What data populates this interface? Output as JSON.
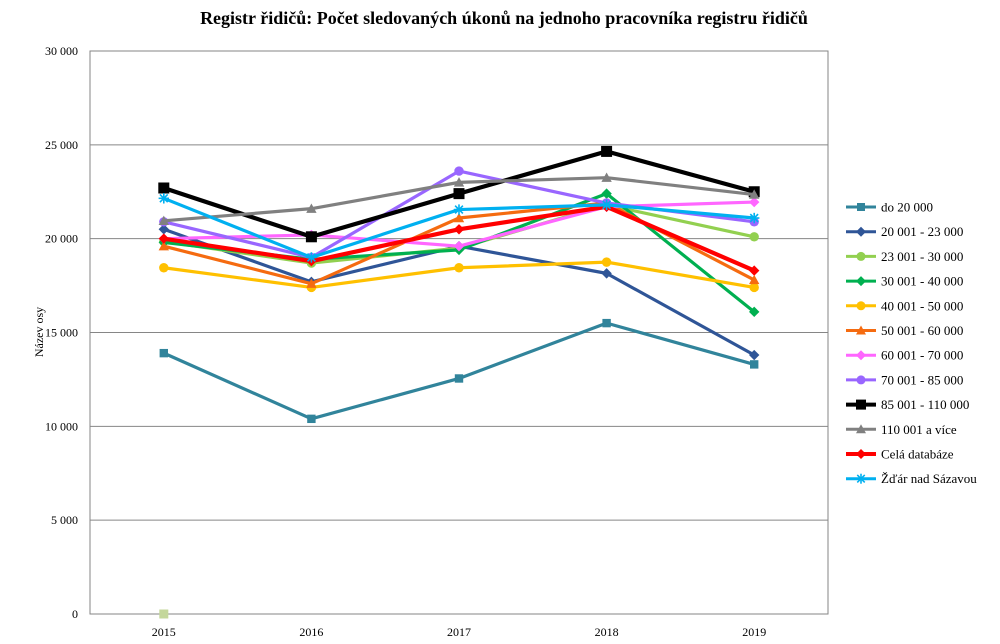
{
  "chart_data": {
    "type": "line",
    "title": "Registr řidičů: Počet sledovaných úkonů na jednoho pracovníka registru řidičů",
    "xlabel": "",
    "ylabel": "Název osy",
    "categories": [
      "2015",
      "2016",
      "2017",
      "2018",
      "2019"
    ],
    "ylim": [
      0,
      30000
    ],
    "yticks": [
      0,
      5000,
      10000,
      15000,
      20000,
      25000,
      30000
    ],
    "ytick_labels": [
      "0",
      "5 000",
      "10 000",
      "15 000",
      "20 000",
      "25 000",
      "30 000"
    ],
    "grid": true,
    "legend_position": "right",
    "series": [
      {
        "name": "do 20 000",
        "color": "#31849B",
        "marker": "square",
        "values": [
          13900,
          10400,
          12550,
          15500,
          13300
        ]
      },
      {
        "name": "20 001 - 23 000",
        "color": "#2F5597",
        "marker": "diamond",
        "values": [
          20500,
          17700,
          19600,
          18150,
          13800
        ]
      },
      {
        "name": "23 001 - 30 000",
        "color": "#92D050",
        "marker": "circle",
        "values": [
          19850,
          18700,
          19500,
          21800,
          20100
        ]
      },
      {
        "name": "30 001 - 40 000",
        "color": "#00B050",
        "marker": "diamond",
        "values": [
          19800,
          18900,
          19400,
          22400,
          16100
        ]
      },
      {
        "name": "40 001 - 50 000",
        "color": "#FFC000",
        "marker": "circle",
        "values": [
          18450,
          17400,
          18450,
          18750,
          17400
        ]
      },
      {
        "name": "50 001 - 60 000",
        "color": "#F56B10",
        "marker": "triangle",
        "values": [
          19600,
          17600,
          21100,
          21900,
          17800
        ]
      },
      {
        "name": "60 001 - 70 000",
        "color": "#FF66FF",
        "marker": "diamond",
        "values": [
          20000,
          20200,
          19600,
          21700,
          21950
        ]
      },
      {
        "name": "70 001 - 85 000",
        "color": "#9966FF",
        "marker": "circle",
        "values": [
          20900,
          19000,
          23600,
          21900,
          20900
        ]
      },
      {
        "name": "85 001 - 110 000",
        "color": "#000000",
        "marker": "square",
        "values": [
          22700,
          20100,
          22400,
          24650,
          22500
        ]
      },
      {
        "name": "110 001 a více",
        "color": "#808080",
        "marker": "triangle",
        "values": [
          20950,
          21600,
          23000,
          23250,
          22350
        ]
      },
      {
        "name": "Celá databáze",
        "color": "#FF0000",
        "marker": "diamond",
        "values": [
          20000,
          18800,
          20500,
          21700,
          18300
        ]
      },
      {
        "name": "Žďár nad Sázavou",
        "color": "#00B0F0",
        "marker": "star",
        "values": [
          22150,
          19000,
          21550,
          21800,
          21100
        ]
      }
    ],
    "stray_points": [
      {
        "x": "2015",
        "y": 0,
        "color": "#C4D79B",
        "marker": "square"
      }
    ]
  }
}
